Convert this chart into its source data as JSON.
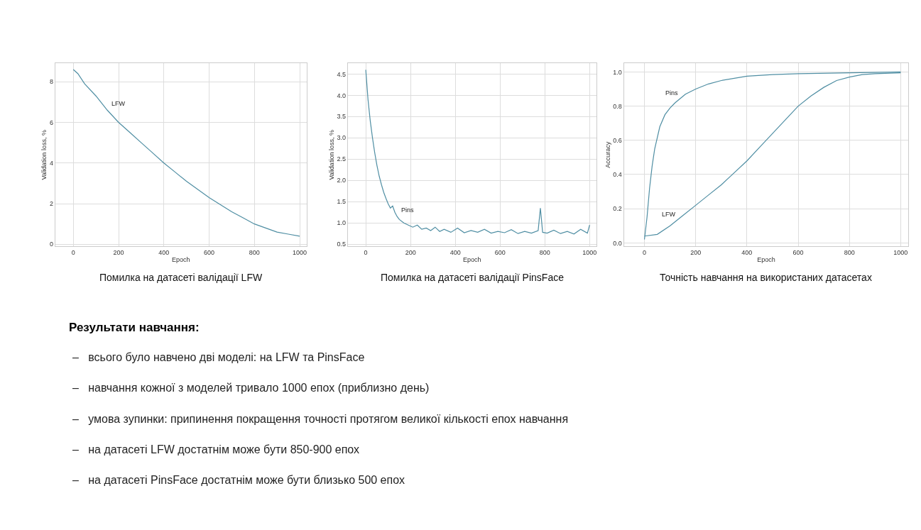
{
  "chart_data": [
    {
      "type": "line",
      "title": "Помилка на датасеті валідації LFW",
      "xlabel": "Epoch",
      "ylabel": "Validation loss, %",
      "xlim": [
        -80,
        1030
      ],
      "xticks": [
        0,
        200,
        400,
        600,
        800,
        1000
      ],
      "ylim": [
        -0.1,
        8.9
      ],
      "yticks": [
        0,
        2,
        4,
        6,
        8
      ],
      "grid": true,
      "marker": "none",
      "line_style": "solid",
      "series": [
        {
          "name": "LFW",
          "color": "#4f8ea3",
          "x": [
            0,
            20,
            50,
            100,
            150,
            200,
            250,
            300,
            350,
            400,
            450,
            500,
            550,
            600,
            650,
            700,
            750,
            800,
            850,
            900,
            950,
            1000
          ],
          "values": [
            8.6,
            8.4,
            7.9,
            7.3,
            6.6,
            6.0,
            5.5,
            5.0,
            4.5,
            4.0,
            3.55,
            3.1,
            2.7,
            2.3,
            1.95,
            1.6,
            1.3,
            1.0,
            0.8,
            0.6,
            0.5,
            0.4
          ]
        }
      ]
    },
    {
      "type": "line",
      "title": "Помилка на датасеті валідації PinsFace",
      "xlabel": "Epoch",
      "ylabel": "Validation loss, %",
      "xlim": [
        -80,
        1030
      ],
      "xticks": [
        0,
        200,
        400,
        600,
        800,
        1000
      ],
      "ylim": [
        0.45,
        4.75
      ],
      "yticks": [
        0.5,
        {
          "value": 1,
          "label": "1.0"
        },
        1.5,
        {
          "value": 2,
          "label": "2.0"
        },
        2.5,
        {
          "value": 3,
          "label": "3.0"
        },
        3.5,
        {
          "value": 4,
          "label": "4.0"
        },
        4.5
      ],
      "grid": true,
      "marker": "none",
      "line_style": "solid",
      "series": [
        {
          "name": "Pins",
          "color": "#4f8ea3",
          "x": [
            0,
            10,
            20,
            30,
            40,
            50,
            60,
            70,
            80,
            90,
            100,
            110,
            120,
            130,
            140,
            150,
            170,
            190,
            210,
            230,
            250,
            270,
            290,
            310,
            330,
            350,
            380,
            410,
            440,
            470,
            500,
            530,
            560,
            590,
            620,
            650,
            680,
            710,
            740,
            770,
            780,
            790,
            810,
            840,
            870,
            900,
            930,
            960,
            990,
            1000
          ],
          "values": [
            4.6,
            3.9,
            3.4,
            3.0,
            2.65,
            2.35,
            2.1,
            1.9,
            1.72,
            1.58,
            1.45,
            1.35,
            1.4,
            1.25,
            1.15,
            1.08,
            1.0,
            0.95,
            0.9,
            0.95,
            0.85,
            0.88,
            0.82,
            0.9,
            0.8,
            0.85,
            0.78,
            0.88,
            0.77,
            0.82,
            0.78,
            0.85,
            0.76,
            0.8,
            0.77,
            0.84,
            0.75,
            0.8,
            0.76,
            0.82,
            1.35,
            0.78,
            0.76,
            0.83,
            0.75,
            0.8,
            0.74,
            0.85,
            0.76,
            0.95
          ]
        }
      ]
    },
    {
      "type": "line",
      "title": "Точність навчання на використаних датасетах",
      "xlabel": "Epoch",
      "ylabel": "Accuracy",
      "xlim": [
        -80,
        1030
      ],
      "xticks": [
        0,
        200,
        400,
        600,
        800,
        1000
      ],
      "ylim": [
        -0.02,
        1.05
      ],
      "yticks": [
        {
          "value": 0,
          "label": "0.0"
        },
        0.2,
        0.4,
        0.6,
        0.8,
        {
          "value": 1,
          "label": "1.0"
        }
      ],
      "grid": true,
      "marker": "none",
      "line_style": "solid",
      "series": [
        {
          "name": "Pins",
          "color": "#4f8ea3",
          "x": [
            0,
            10,
            20,
            30,
            40,
            60,
            80,
            100,
            120,
            160,
            200,
            250,
            300,
            400,
            500,
            600,
            800,
            1000
          ],
          "values": [
            0.02,
            0.15,
            0.32,
            0.45,
            0.55,
            0.68,
            0.75,
            0.79,
            0.82,
            0.87,
            0.9,
            0.93,
            0.95,
            0.975,
            0.985,
            0.99,
            0.995,
            1.0
          ]
        },
        {
          "name": "LFW",
          "color": "#4f8ea3",
          "x": [
            0,
            50,
            100,
            150,
            200,
            250,
            300,
            350,
            400,
            450,
            500,
            550,
            600,
            650,
            700,
            750,
            800,
            850,
            900,
            1000
          ],
          "values": [
            0.04,
            0.05,
            0.1,
            0.16,
            0.22,
            0.28,
            0.34,
            0.41,
            0.48,
            0.56,
            0.64,
            0.72,
            0.8,
            0.86,
            0.91,
            0.95,
            0.97,
            0.985,
            0.99,
            0.995
          ]
        }
      ]
    },
    {
      "type": "other",
      "title": "Результати навчання:",
      "annotations": [
        "–   всього було навчено дві моделі: на LFW та PinsFace",
        "–   навчання кожної з моделей тривало 1000 епох (приблизно день)",
        "–   умова зупинки: припинення покращення точності протягом великої кількості епох навчання",
        "–   на датасеті LFW достатнім може бути 850-900 епох",
        "–   на датасеті PinsFace достатнім може бути близько 500 епох"
      ]
    }
  ]
}
